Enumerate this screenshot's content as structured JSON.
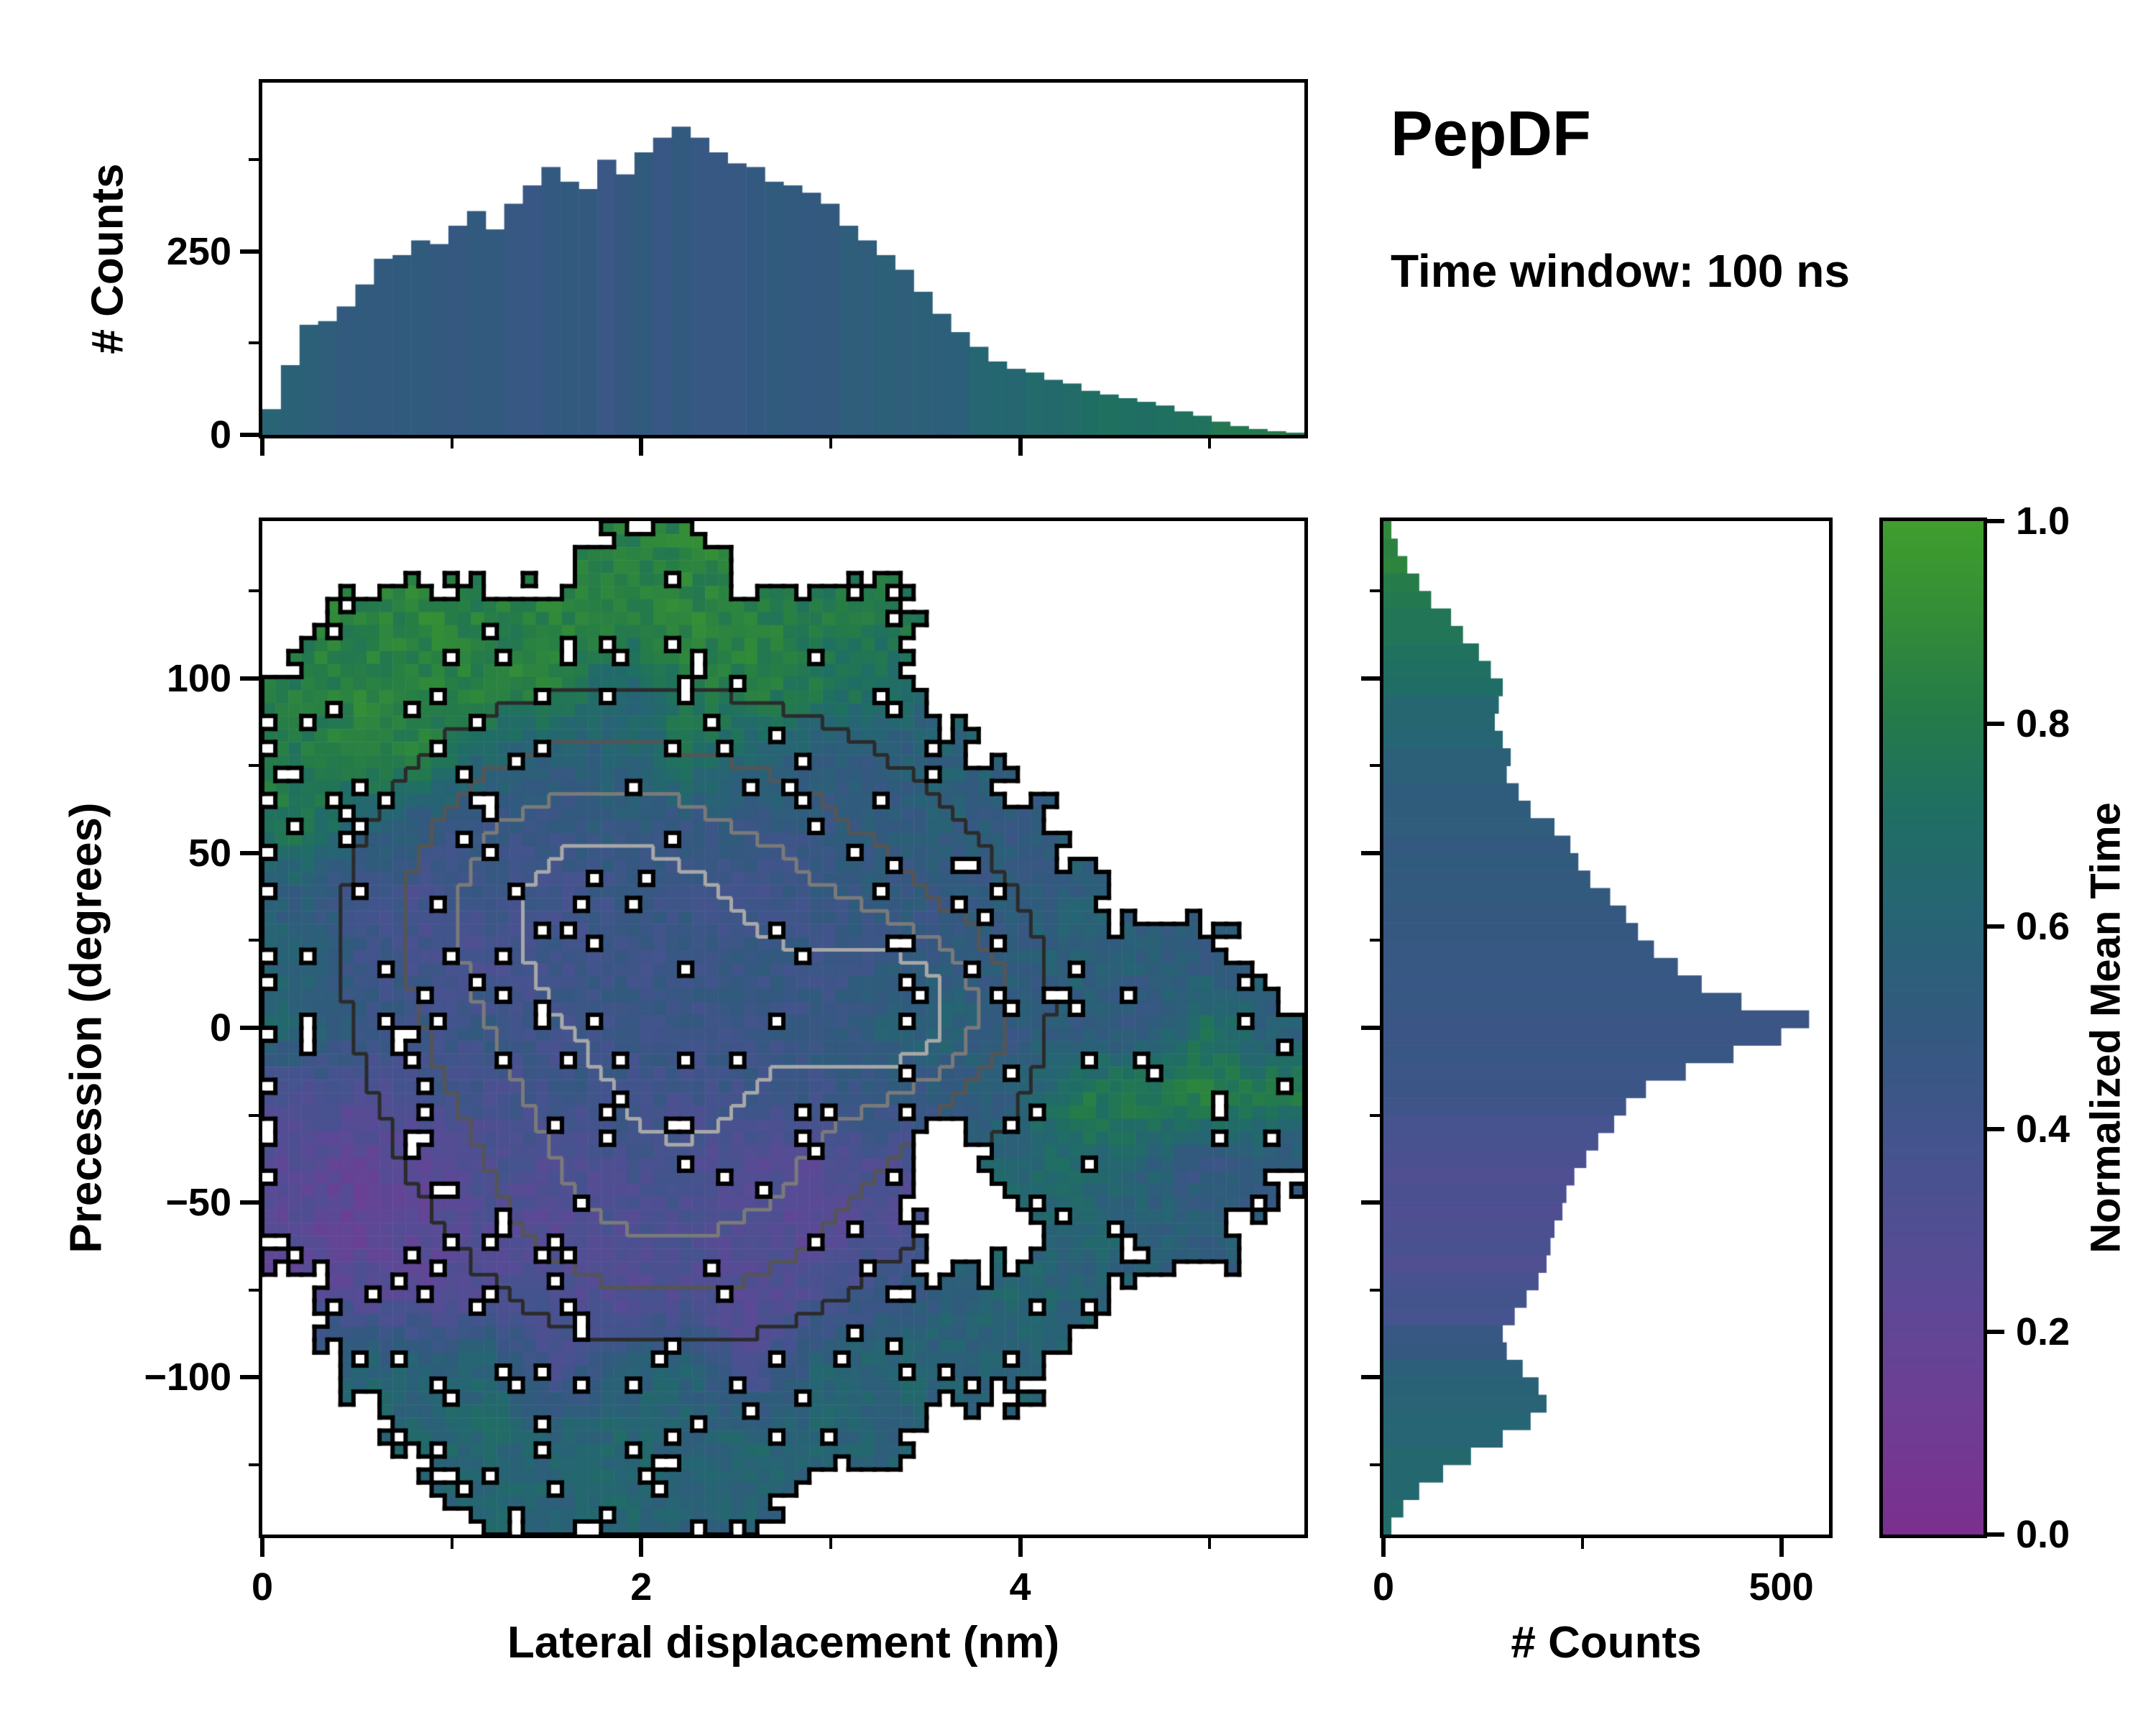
{
  "title": {
    "heading": "PepDF",
    "subtitle": "Time window: 100 ns"
  },
  "colors": {
    "background": "#ffffff",
    "frame": "#000000",
    "contour_outline": "#000000",
    "contour_grays": [
      "#2b2b2b",
      "#555555",
      "#7a7a7a",
      "#a8a8a8"
    ],
    "colormap": [
      [
        0.0,
        "#7b2f8e"
      ],
      [
        0.12,
        "#6e3d94"
      ],
      [
        0.25,
        "#5a4a96"
      ],
      [
        0.38,
        "#45538e"
      ],
      [
        0.5,
        "#33597f"
      ],
      [
        0.62,
        "#266573"
      ],
      [
        0.72,
        "#1f6f62"
      ],
      [
        0.82,
        "#267c47"
      ],
      [
        0.92,
        "#359035"
      ],
      [
        1.0,
        "#3f9e2e"
      ]
    ]
  },
  "chart_data": {
    "top_histogram": {
      "type": "bar",
      "ylabel": "# Counts",
      "xlim": [
        0,
        5.5
      ],
      "ylim": [
        0,
        480
      ],
      "yticks": [
        0,
        250
      ],
      "yticks_minor": [
        125,
        375
      ],
      "n_bins": 56,
      "counts": [
        35,
        95,
        150,
        155,
        175,
        205,
        240,
        245,
        265,
        260,
        285,
        305,
        280,
        315,
        340,
        365,
        345,
        335,
        375,
        355,
        385,
        405,
        420,
        405,
        385,
        370,
        365,
        345,
        340,
        330,
        315,
        285,
        265,
        245,
        225,
        195,
        165,
        140,
        120,
        100,
        90,
        85,
        75,
        70,
        60,
        55,
        50,
        45,
        40,
        32,
        26,
        18,
        12,
        8,
        5,
        3
      ],
      "color_values": [
        0.6,
        0.58,
        0.55,
        0.54,
        0.53,
        0.52,
        0.52,
        0.51,
        0.5,
        0.5,
        0.5,
        0.49,
        0.5,
        0.49,
        0.48,
        0.49,
        0.5,
        0.49,
        0.48,
        0.49,
        0.5,
        0.49,
        0.5,
        0.5,
        0.49,
        0.5,
        0.51,
        0.5,
        0.51,
        0.52,
        0.52,
        0.53,
        0.54,
        0.55,
        0.56,
        0.57,
        0.58,
        0.6,
        0.62,
        0.63,
        0.65,
        0.66,
        0.68,
        0.69,
        0.7,
        0.71,
        0.72,
        0.73,
        0.74,
        0.75,
        0.76,
        0.77,
        0.78,
        0.78,
        0.79,
        0.8
      ]
    },
    "main_heatmap": {
      "type": "heatmap",
      "xlabel": "Lateral displacement (nm)",
      "ylabel": "Precession (degrees)",
      "value_label": "Normalized Mean Time",
      "xlim": [
        0,
        5.5
      ],
      "ylim": [
        -145,
        145
      ],
      "xticks": [
        0,
        2,
        4
      ],
      "xticks_minor": [
        1,
        3,
        5
      ],
      "yticks": [
        100,
        50,
        0,
        -50,
        -100
      ],
      "yticks_minor": [
        125,
        75,
        25,
        -25,
        -75,
        -125
      ],
      "grid_cols": 16,
      "grid_rows": 15,
      "values": [
        [
          null,
          null,
          null,
          null,
          null,
          0.82,
          0.85,
          null,
          null,
          null,
          null,
          null,
          null,
          null,
          null,
          null
        ],
        [
          null,
          0.84,
          0.86,
          0.82,
          0.85,
          0.83,
          0.86,
          0.84,
          0.8,
          0.78,
          null,
          null,
          null,
          null,
          null,
          null
        ],
        [
          0.82,
          0.85,
          0.83,
          0.86,
          0.84,
          0.62,
          0.8,
          0.83,
          0.78,
          0.72,
          null,
          null,
          null,
          null,
          null,
          null
        ],
        [
          0.8,
          0.83,
          0.81,
          0.62,
          0.55,
          0.58,
          0.75,
          0.62,
          0.55,
          0.52,
          0.58,
          null,
          null,
          null,
          null,
          null
        ],
        [
          0.78,
          0.62,
          0.5,
          0.45,
          0.48,
          0.52,
          0.46,
          0.5,
          0.48,
          0.52,
          0.55,
          0.5,
          null,
          null,
          null,
          null
        ],
        [
          0.55,
          0.42,
          0.38,
          0.45,
          0.4,
          0.44,
          0.47,
          0.42,
          0.46,
          0.5,
          0.48,
          0.52,
          0.55,
          null,
          null,
          null
        ],
        [
          0.6,
          0.45,
          0.4,
          0.36,
          0.42,
          0.45,
          0.43,
          0.47,
          0.44,
          0.48,
          0.5,
          0.52,
          0.6,
          0.55,
          0.5,
          null
        ],
        [
          0.62,
          0.5,
          0.44,
          0.46,
          0.42,
          0.45,
          0.47,
          0.45,
          0.48,
          0.55,
          0.6,
          0.5,
          0.52,
          0.48,
          0.72,
          0.55
        ],
        [
          0.35,
          0.3,
          0.4,
          0.38,
          0.42,
          0.44,
          0.4,
          0.43,
          0.45,
          0.48,
          0.5,
          0.55,
          0.78,
          0.82,
          0.85,
          0.8
        ],
        [
          0.28,
          0.22,
          0.25,
          0.35,
          0.32,
          0.38,
          0.35,
          0.3,
          0.28,
          0.35,
          null,
          0.62,
          0.68,
          0.6,
          0.45,
          0.5
        ],
        [
          0.25,
          0.2,
          0.24,
          0.3,
          0.28,
          0.33,
          0.35,
          0.3,
          0.26,
          0.32,
          null,
          null,
          0.62,
          0.58,
          0.55,
          null
        ],
        [
          null,
          0.3,
          0.28,
          0.33,
          0.35,
          0.3,
          0.32,
          0.28,
          0.35,
          0.45,
          0.55,
          0.62,
          0.58,
          null,
          null,
          null
        ],
        [
          null,
          0.6,
          0.58,
          0.62,
          0.35,
          0.55,
          0.6,
          0.3,
          0.58,
          0.62,
          0.6,
          0.58,
          null,
          null,
          null,
          null
        ],
        [
          null,
          null,
          0.62,
          0.65,
          0.6,
          0.63,
          0.58,
          0.62,
          0.6,
          0.58,
          null,
          null,
          null,
          null,
          null,
          null
        ],
        [
          null,
          null,
          null,
          0.62,
          0.6,
          0.63,
          0.58,
          0.6,
          null,
          null,
          null,
          null,
          null,
          null,
          null,
          null
        ]
      ]
    },
    "right_histogram": {
      "type": "bar",
      "orientation": "horizontal",
      "xlabel": "# Counts",
      "xlim": [
        0,
        560
      ],
      "xticks": [
        0,
        500
      ],
      "xticks_minor": [
        250
      ],
      "ylim": [
        -145,
        145
      ],
      "n_bins": 58,
      "counts": [
        10,
        18,
        30,
        45,
        60,
        85,
        100,
        120,
        135,
        150,
        145,
        140,
        150,
        160,
        155,
        170,
        185,
        215,
        235,
        245,
        260,
        285,
        305,
        320,
        340,
        370,
        400,
        450,
        535,
        500,
        440,
        380,
        330,
        305,
        290,
        270,
        255,
        240,
        230,
        225,
        215,
        210,
        205,
        195,
        180,
        165,
        150,
        155,
        175,
        195,
        205,
        185,
        150,
        110,
        75,
        45,
        25,
        10
      ],
      "color_values": [
        0.86,
        0.85,
        0.84,
        0.83,
        0.81,
        0.79,
        0.77,
        0.74,
        0.71,
        0.68,
        0.65,
        0.62,
        0.6,
        0.58,
        0.56,
        0.55,
        0.53,
        0.52,
        0.51,
        0.5,
        0.5,
        0.49,
        0.49,
        0.48,
        0.48,
        0.47,
        0.47,
        0.46,
        0.46,
        0.45,
        0.44,
        0.43,
        0.42,
        0.4,
        0.38,
        0.36,
        0.35,
        0.34,
        0.33,
        0.32,
        0.32,
        0.33,
        0.34,
        0.36,
        0.38,
        0.4,
        0.45,
        0.5,
        0.55,
        0.58,
        0.6,
        0.62,
        0.63,
        0.64,
        0.65,
        0.66,
        0.66,
        0.67
      ]
    },
    "colorbar": {
      "label": "Normalized Mean Time",
      "range": [
        0.0,
        1.0
      ],
      "ticks": [
        0.0,
        0.2,
        0.4,
        0.6,
        0.8,
        1.0
      ]
    }
  }
}
